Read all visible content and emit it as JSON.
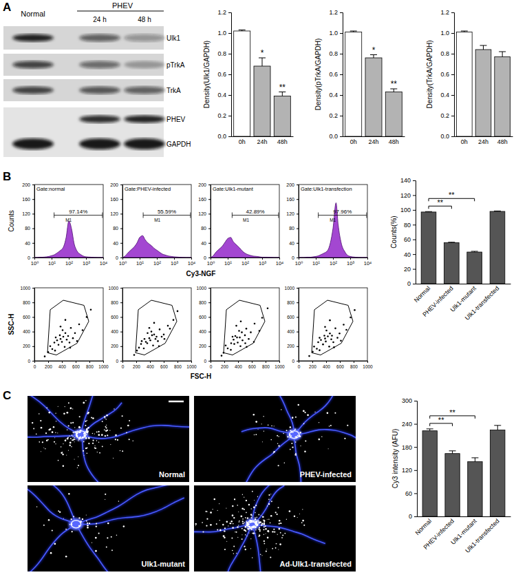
{
  "figure": {
    "panel_labels": [
      "A",
      "B",
      "C"
    ],
    "blot": {
      "normal": "Normal",
      "group": "PHEV",
      "lanes": [
        "24 h",
        "48 h"
      ],
      "rows": [
        "Ulk1",
        "pTrkA",
        "TrkA",
        "PHEV",
        "GAPDH"
      ]
    },
    "flow_axes": {
      "hist_y": "Counts",
      "hist_x": "Cy3-NGF",
      "scatter_y": "SSC-H",
      "scatter_x": "FSC-H"
    },
    "micrographs": [
      "Normal",
      "PHEV-infected",
      "Ulk1-mutant",
      "Ad-Ulk1-transfected"
    ]
  },
  "chart_data": [
    {
      "type": "bar",
      "y_label": "Density(Ulk1/GAPDH)",
      "categories": [
        "0h",
        "24h",
        "48h"
      ],
      "values": [
        1.02,
        0.68,
        0.39
      ],
      "errors": [
        0.01,
        0.08,
        0.04
      ],
      "colors": [
        "#ffffff",
        "#b3b3b3",
        "#b3b3b3"
      ],
      "ylim": [
        0,
        1.2
      ],
      "yticks": [
        {
          "value": 0,
          "label": "0.0"
        },
        0.2,
        0.4,
        0.6,
        0.8,
        {
          "value": 1,
          "label": "1.0"
        },
        1.2
      ],
      "annotations": [
        {
          "category": "24h",
          "text": "*"
        },
        {
          "category": "48h",
          "text": "**"
        }
      ]
    },
    {
      "type": "bar",
      "y_label": "Density(pTrkA/GAPDH)",
      "categories": [
        "0h",
        "24h",
        "48h"
      ],
      "values": [
        1.01,
        0.76,
        0.43
      ],
      "errors": [
        0.01,
        0.03,
        0.03
      ],
      "colors": [
        "#ffffff",
        "#b3b3b3",
        "#b3b3b3"
      ],
      "ylim": [
        0,
        1.2
      ],
      "yticks": [
        {
          "value": 0,
          "label": "0.0"
        },
        0.2,
        0.4,
        0.6,
        0.8,
        {
          "value": 1,
          "label": "1.0"
        },
        1.2
      ],
      "annotations": [
        {
          "category": "24h",
          "text": "*"
        },
        {
          "category": "48h",
          "text": "**"
        }
      ]
    },
    {
      "type": "bar",
      "y_label": "Density(TrkA/GAPDH)",
      "categories": [
        "0h",
        "24h",
        "48h"
      ],
      "values": [
        1.01,
        0.84,
        0.77
      ],
      "errors": [
        0.01,
        0.04,
        0.05
      ],
      "colors": [
        "#ffffff",
        "#b3b3b3",
        "#b3b3b3"
      ],
      "ylim": [
        0,
        1.2
      ],
      "yticks": [
        {
          "value": 0,
          "label": "0.0"
        },
        0.2,
        0.4,
        0.6,
        0.8,
        {
          "value": 1,
          "label": "1.0"
        },
        1.2
      ]
    },
    {
      "type": "area",
      "title": "Gate:normal",
      "log": "x",
      "color": "#9933cc",
      "x": [
        1,
        1.5,
        2,
        3,
        5,
        7,
        10,
        15,
        20,
        30,
        50,
        70,
        100,
        150,
        200,
        300,
        500,
        700,
        1000,
        2000,
        5000,
        10000
      ],
      "values": [
        0,
        0,
        1,
        1,
        2,
        3,
        5,
        8,
        12,
        18,
        30,
        55,
        100,
        75,
        40,
        18,
        8,
        4,
        2,
        1,
        0,
        0
      ],
      "xlim": [
        1,
        10000
      ],
      "xticks": [
        {
          "value": 1,
          "label": "10⁰"
        },
        {
          "value": 10,
          "label": "10¹"
        },
        {
          "value": 100,
          "label": "10²"
        },
        {
          "value": 1000,
          "label": "10³"
        },
        {
          "value": 10000,
          "label": "10⁴"
        }
      ],
      "ylim": [
        0,
        200
      ],
      "yticks": [
        0,
        40,
        80,
        120,
        160,
        200
      ],
      "gate_range": [
        14,
        9000
      ],
      "gate_label": "97.14%",
      "gate_name": "M1"
    },
    {
      "type": "area",
      "title": "Gate:PHEV-infected",
      "log": "x",
      "color": "#9933cc",
      "x": [
        1,
        1.5,
        2,
        3,
        5,
        7,
        10,
        15,
        20,
        30,
        50,
        70,
        100,
        150,
        200,
        300,
        500,
        700,
        1000,
        2000,
        5000,
        10000
      ],
      "values": [
        0,
        5,
        12,
        20,
        30,
        40,
        55,
        60,
        50,
        40,
        32,
        25,
        20,
        14,
        10,
        7,
        4,
        3,
        2,
        1,
        0,
        0
      ],
      "xlim": [
        1,
        10000
      ],
      "xticks": [
        {
          "value": 1,
          "label": "10⁰"
        },
        {
          "value": 10,
          "label": "10¹"
        },
        {
          "value": 100,
          "label": "10²"
        },
        {
          "value": 1000,
          "label": "10³"
        },
        {
          "value": 10000,
          "label": "10⁴"
        }
      ],
      "ylim": [
        0,
        200
      ],
      "yticks": [
        0,
        40,
        80,
        120,
        160,
        200
      ],
      "gate_range": [
        16,
        9000
      ],
      "gate_label": "55.59%",
      "gate_name": "M1"
    },
    {
      "type": "area",
      "title": "Gate:Ulk1-mutant",
      "log": "x",
      "color": "#9933cc",
      "x": [
        1,
        1.5,
        2,
        3,
        5,
        7,
        10,
        15,
        20,
        30,
        50,
        70,
        100,
        150,
        200,
        300,
        500,
        700,
        1000,
        2000,
        5000,
        10000
      ],
      "values": [
        0,
        6,
        14,
        22,
        32,
        42,
        52,
        55,
        45,
        36,
        26,
        18,
        12,
        8,
        6,
        4,
        3,
        2,
        1,
        1,
        0,
        0
      ],
      "xlim": [
        1,
        10000
      ],
      "xticks": [
        {
          "value": 1,
          "label": "10⁰"
        },
        {
          "value": 10,
          "label": "10¹"
        },
        {
          "value": 100,
          "label": "10²"
        },
        {
          "value": 1000,
          "label": "10³"
        },
        {
          "value": 10000,
          "label": "10⁴"
        }
      ],
      "ylim": [
        0,
        200
      ],
      "yticks": [
        0,
        40,
        80,
        120,
        160,
        200
      ],
      "gate_range": [
        18,
        9000
      ],
      "gate_label": "42.89%",
      "gate_name": "M1"
    },
    {
      "type": "area",
      "title": "Gate:Ulk1-transfection",
      "log": "x",
      "color": "#9933cc",
      "x": [
        1,
        1.5,
        2,
        3,
        5,
        7,
        10,
        15,
        20,
        30,
        50,
        70,
        100,
        150,
        200,
        300,
        500,
        700,
        1000,
        2000,
        5000,
        10000
      ],
      "values": [
        0,
        0,
        0,
        1,
        1,
        2,
        3,
        5,
        8,
        12,
        20,
        40,
        80,
        150,
        90,
        40,
        15,
        6,
        3,
        1,
        0,
        0
      ],
      "xlim": [
        1,
        10000
      ],
      "xticks": [
        {
          "value": 1,
          "label": "10⁰"
        },
        {
          "value": 10,
          "label": "10¹"
        },
        {
          "value": 100,
          "label": "10²"
        },
        {
          "value": 1000,
          "label": "10³"
        },
        {
          "value": 10000,
          "label": "10⁴"
        }
      ],
      "ylim": [
        0,
        200
      ],
      "yticks": [
        0,
        40,
        80,
        120,
        160,
        200
      ],
      "gate_range": [
        14,
        9000
      ],
      "gate_label": "97.96%",
      "gate_name": "M1"
    },
    {
      "type": "scatter",
      "color": "#000000",
      "x": [
        150,
        200,
        230,
        260,
        290,
        310,
        330,
        350,
        370,
        380,
        400,
        410,
        420,
        440,
        450,
        470,
        490,
        510,
        530,
        560,
        590,
        620,
        650,
        700,
        760,
        820,
        300,
        380,
        450,
        520
      ],
      "values": [
        60,
        120,
        200,
        160,
        250,
        320,
        280,
        220,
        350,
        300,
        260,
        420,
        330,
        190,
        380,
        290,
        340,
        250,
        450,
        310,
        380,
        270,
        500,
        420,
        600,
        700,
        140,
        470,
        560,
        180
      ],
      "xlim": [
        0,
        1000
      ],
      "xticks": [
        0,
        200,
        400,
        600,
        800,
        1000
      ],
      "ylim": [
        0,
        1000
      ],
      "yticks": [
        0,
        200,
        400,
        600,
        800,
        1000
      ],
      "gate": {
        "x": [
          190,
          230,
          420,
          720,
          790,
          620,
          320
        ],
        "y": [
          110,
          700,
          830,
          760,
          540,
          240,
          80
        ]
      }
    },
    {
      "type": "scatter",
      "color": "#000000",
      "x": [
        170,
        210,
        240,
        270,
        280,
        320,
        340,
        360,
        365,
        390,
        405,
        420,
        430,
        445,
        460,
        480,
        495,
        515,
        540,
        570,
        600,
        610,
        660,
        690,
        740,
        800,
        310,
        390,
        460,
        530
      ],
      "values": [
        80,
        140,
        180,
        230,
        270,
        300,
        260,
        240,
        380,
        310,
        280,
        400,
        350,
        210,
        360,
        300,
        330,
        270,
        430,
        330,
        360,
        300,
        480,
        440,
        560,
        680,
        170,
        450,
        520,
        200
      ],
      "xlim": [
        0,
        1000
      ],
      "xticks": [
        0,
        200,
        400,
        600,
        800,
        1000
      ],
      "ylim": [
        0,
        1000
      ],
      "yticks": [
        0,
        200,
        400,
        600,
        800,
        1000
      ],
      "gate": {
        "x": [
          190,
          230,
          420,
          720,
          790,
          620,
          320
        ],
        "y": [
          110,
          700,
          830,
          760,
          540,
          240,
          80
        ]
      }
    },
    {
      "type": "scatter",
      "color": "#000000",
      "x": [
        160,
        190,
        220,
        250,
        300,
        320,
        335,
        345,
        360,
        385,
        395,
        415,
        425,
        435,
        455,
        465,
        500,
        505,
        520,
        555,
        585,
        630,
        640,
        710,
        750,
        830,
        295,
        375,
        440,
        525
      ],
      "values": [
        70,
        110,
        210,
        170,
        240,
        330,
        290,
        230,
        340,
        320,
        250,
        410,
        320,
        200,
        390,
        280,
        350,
        240,
        440,
        300,
        390,
        260,
        510,
        410,
        590,
        720,
        150,
        480,
        540,
        190
      ],
      "xlim": [
        0,
        1000
      ],
      "xticks": [
        0,
        200,
        400,
        600,
        800,
        1000
      ],
      "ylim": [
        0,
        1000
      ],
      "yticks": [
        0,
        200,
        400,
        600,
        800,
        1000
      ],
      "gate": {
        "x": [
          190,
          230,
          420,
          720,
          790,
          620,
          320
        ],
        "y": [
          110,
          700,
          830,
          760,
          540,
          240,
          80
        ]
      }
    },
    {
      "type": "scatter",
      "color": "#000000",
      "x": [
        155,
        205,
        225,
        265,
        285,
        305,
        325,
        355,
        375,
        385,
        395,
        405,
        425,
        445,
        455,
        475,
        485,
        505,
        535,
        565,
        595,
        615,
        655,
        695,
        755,
        815,
        305,
        385,
        455,
        515
      ],
      "values": [
        65,
        125,
        195,
        165,
        255,
        315,
        285,
        225,
        345,
        305,
        265,
        415,
        335,
        195,
        375,
        295,
        345,
        255,
        445,
        315,
        375,
        275,
        495,
        425,
        595,
        695,
        145,
        465,
        555,
        185
      ],
      "xlim": [
        0,
        1000
      ],
      "xticks": [
        0,
        200,
        400,
        600,
        800,
        1000
      ],
      "ylim": [
        0,
        1000
      ],
      "yticks": [
        0,
        200,
        400,
        600,
        800,
        1000
      ],
      "gate": {
        "x": [
          190,
          230,
          420,
          720,
          790,
          620,
          320
        ],
        "y": [
          110,
          700,
          830,
          760,
          540,
          240,
          80
        ]
      }
    },
    {
      "type": "bar",
      "y_label": "Counts(%)",
      "categories": [
        "Normal",
        "PHEV-infected",
        "Ulk1-mutant",
        "Ulk1-transfected"
      ],
      "values": [
        97.14,
        55.59,
        42.89,
        97.96
      ],
      "errors": [
        0.6,
        0.6,
        1.0,
        0.6
      ],
      "color": "#555555",
      "ylim": [
        0,
        140
      ],
      "yticks": [
        0,
        20,
        40,
        60,
        80,
        100,
        120,
        140
      ],
      "annotations": [
        {
          "from": "Normal",
          "to": "PHEV-infected",
          "text": "**"
        },
        {
          "from": "Normal",
          "to": "Ulk1-mutant",
          "text": "**"
        }
      ]
    },
    {
      "type": "bar",
      "y_label": "Cy3 intensity (AFU)",
      "categories": [
        "Normal",
        "PHEV-infected",
        "Ulk1-mutant",
        "Ulk1-transfected"
      ],
      "values": [
        222,
        163,
        142,
        224
      ],
      "errors": [
        5,
        7,
        10,
        12
      ],
      "color": "#555555",
      "ylim": [
        0,
        300
      ],
      "yticks": [
        0,
        60,
        120,
        180,
        240,
        300
      ],
      "annotations": [
        {
          "from": "Normal",
          "to": "PHEV-infected",
          "text": "**"
        },
        {
          "from": "Normal",
          "to": "Ulk1-mutant",
          "text": "**"
        }
      ]
    }
  ]
}
